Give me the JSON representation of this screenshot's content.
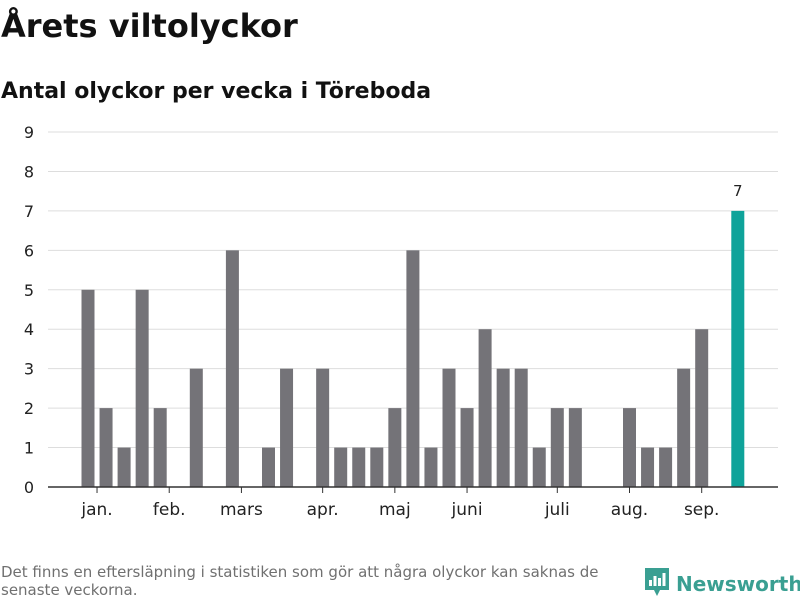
{
  "header": {
    "title": "Årets viltolyckor",
    "subtitle": "Antal olyckor per vecka i Töreboda"
  },
  "footer": {
    "note": "Det finns en eftersläpning i statistiken som gör att några olyckor kan saknas de senaste veckorna.",
    "brand": "Newsworthy",
    "brand_icon": "newsworthy-chart-logo-icon"
  },
  "colors": {
    "bar": "#747378",
    "highlight": "#0fa39a",
    "grid": "#dddddd",
    "axis": "#333333",
    "brand": "#3a9f92"
  },
  "chart_data": {
    "type": "bar",
    "title": "Antal olyckor per vecka i Töreboda",
    "xlabel": "",
    "ylabel": "",
    "x": [
      1,
      2,
      3,
      4,
      5,
      6,
      7,
      8,
      9,
      10,
      11,
      12,
      13,
      14,
      15,
      16,
      17,
      18,
      19,
      20,
      21,
      22,
      23,
      24,
      25,
      26,
      27,
      28,
      29,
      30,
      31,
      32,
      33,
      34,
      35,
      36,
      37,
      38
    ],
    "values": [
      5,
      2,
      1,
      5,
      2,
      0,
      3,
      0,
      6,
      0,
      1,
      3,
      0,
      3,
      1,
      1,
      1,
      2,
      6,
      1,
      3,
      2,
      4,
      3,
      3,
      1,
      2,
      2,
      0,
      0,
      2,
      1,
      1,
      3,
      4,
      0,
      7,
      0
    ],
    "highlight_index": 36,
    "data_labels": [
      {
        "index": 36,
        "text": "7"
      }
    ],
    "ylim": [
      0,
      9
    ],
    "yticks": [
      0,
      1,
      2,
      3,
      4,
      5,
      6,
      7,
      8,
      9
    ],
    "month_labels": [
      {
        "label": "jan.",
        "x": 1.5
      },
      {
        "label": "feb.",
        "x": 5.5
      },
      {
        "label": "mars",
        "x": 9.5
      },
      {
        "label": "apr.",
        "x": 14
      },
      {
        "label": "maj",
        "x": 18
      },
      {
        "label": "juni",
        "x": 22
      },
      {
        "label": "juli",
        "x": 27
      },
      {
        "label": "aug.",
        "x": 31
      },
      {
        "label": "sep.",
        "x": 35
      }
    ],
    "grid": true,
    "legend": "none"
  }
}
